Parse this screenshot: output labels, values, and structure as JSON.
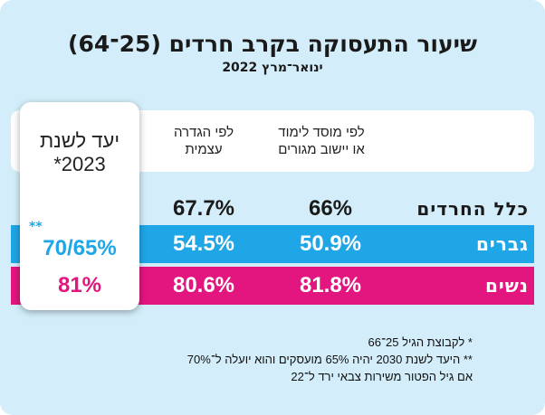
{
  "title": "שיעור התעסוקה בקרב חרדים (25־64)",
  "subtitle": "ינואר־מרץ 2022",
  "colors": {
    "background": "#d3eefa",
    "men_row": "#1fa6e6",
    "women_row": "#e3157f",
    "text": "#1a1a1a"
  },
  "chart_data": {
    "type": "table",
    "title": "שיעור התעסוקה בקרב חרדים (25־64)",
    "subtitle": "ינואר־מרץ 2022",
    "columns": [
      "לפי מוסד לימוד או יישוב מגורים",
      "לפי הגדרה עצמית",
      "יעד לשנת 2023*"
    ],
    "column_lines": [
      [
        "לפי מוסד לימוד",
        "או יישוב מגורים"
      ],
      [
        "לפי הגדרה",
        "עצמית"
      ],
      [
        "יעד לשנת",
        "2023*"
      ]
    ],
    "rows": [
      {
        "label": "כלל החרדים",
        "values": [
          "66%",
          "67.7%",
          ""
        ]
      },
      {
        "label": "גברים",
        "values": [
          "50.9%",
          "54.5%",
          "70/65%"
        ],
        "target_mark": "**"
      },
      {
        "label": "נשים",
        "values": [
          "81.8%",
          "80.6%",
          "81%"
        ]
      }
    ]
  },
  "notes": [
    "* לקבוצת הגיל 25־66",
    "** היעד לשנת 2030 יהיה 65% מועסקים והוא יועלה ל־70%",
    "אם גיל הפטור משירות צבאי ירד ל־22"
  ]
}
